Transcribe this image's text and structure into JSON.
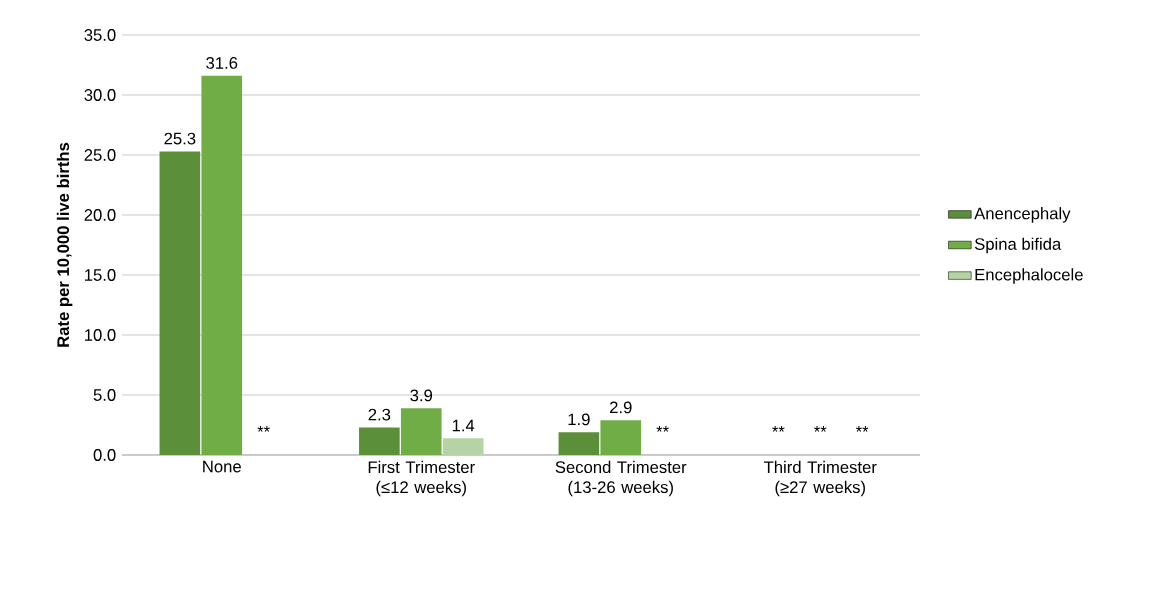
{
  "chart_data": {
    "type": "bar",
    "ylabel": "Rate per 10,000 live births",
    "categories": [
      "None",
      "First Trimester (≤12 weeks)",
      "Second Trimester (13-26 weeks)",
      "Third Trimester (≥27 weeks)"
    ],
    "series": [
      {
        "name": "Anencephaly",
        "color": "#5b8f3a",
        "values": [
          25.3,
          2.3,
          1.9,
          null
        ],
        "value_labels": [
          "25.3",
          "2.3",
          "1.9",
          "**"
        ]
      },
      {
        "name": "Spina bifida",
        "color": "#70ad47",
        "values": [
          31.6,
          3.9,
          2.9,
          null
        ],
        "value_labels": [
          "31.6",
          "3.9",
          "2.9",
          "**"
        ]
      },
      {
        "name": "Encephalocele",
        "color": "#b5d3a5",
        "values": [
          null,
          1.4,
          null,
          null
        ],
        "value_labels": [
          "**",
          "1.4",
          "**",
          "**"
        ]
      }
    ],
    "ylim": [
      0,
      35
    ],
    "yticks": [
      {
        "value": 0,
        "label": "0.0"
      },
      {
        "value": 5,
        "label": "5.0"
      },
      {
        "value": 10,
        "label": "10.0"
      },
      {
        "value": 15,
        "label": "15.0"
      },
      {
        "value": 20,
        "label": "20.0"
      },
      {
        "value": 25,
        "label": "25.0"
      },
      {
        "value": 30,
        "label": "30.0"
      },
      {
        "value": 35,
        "label": "35.0"
      }
    ],
    "grid": "y",
    "legend": "right"
  }
}
